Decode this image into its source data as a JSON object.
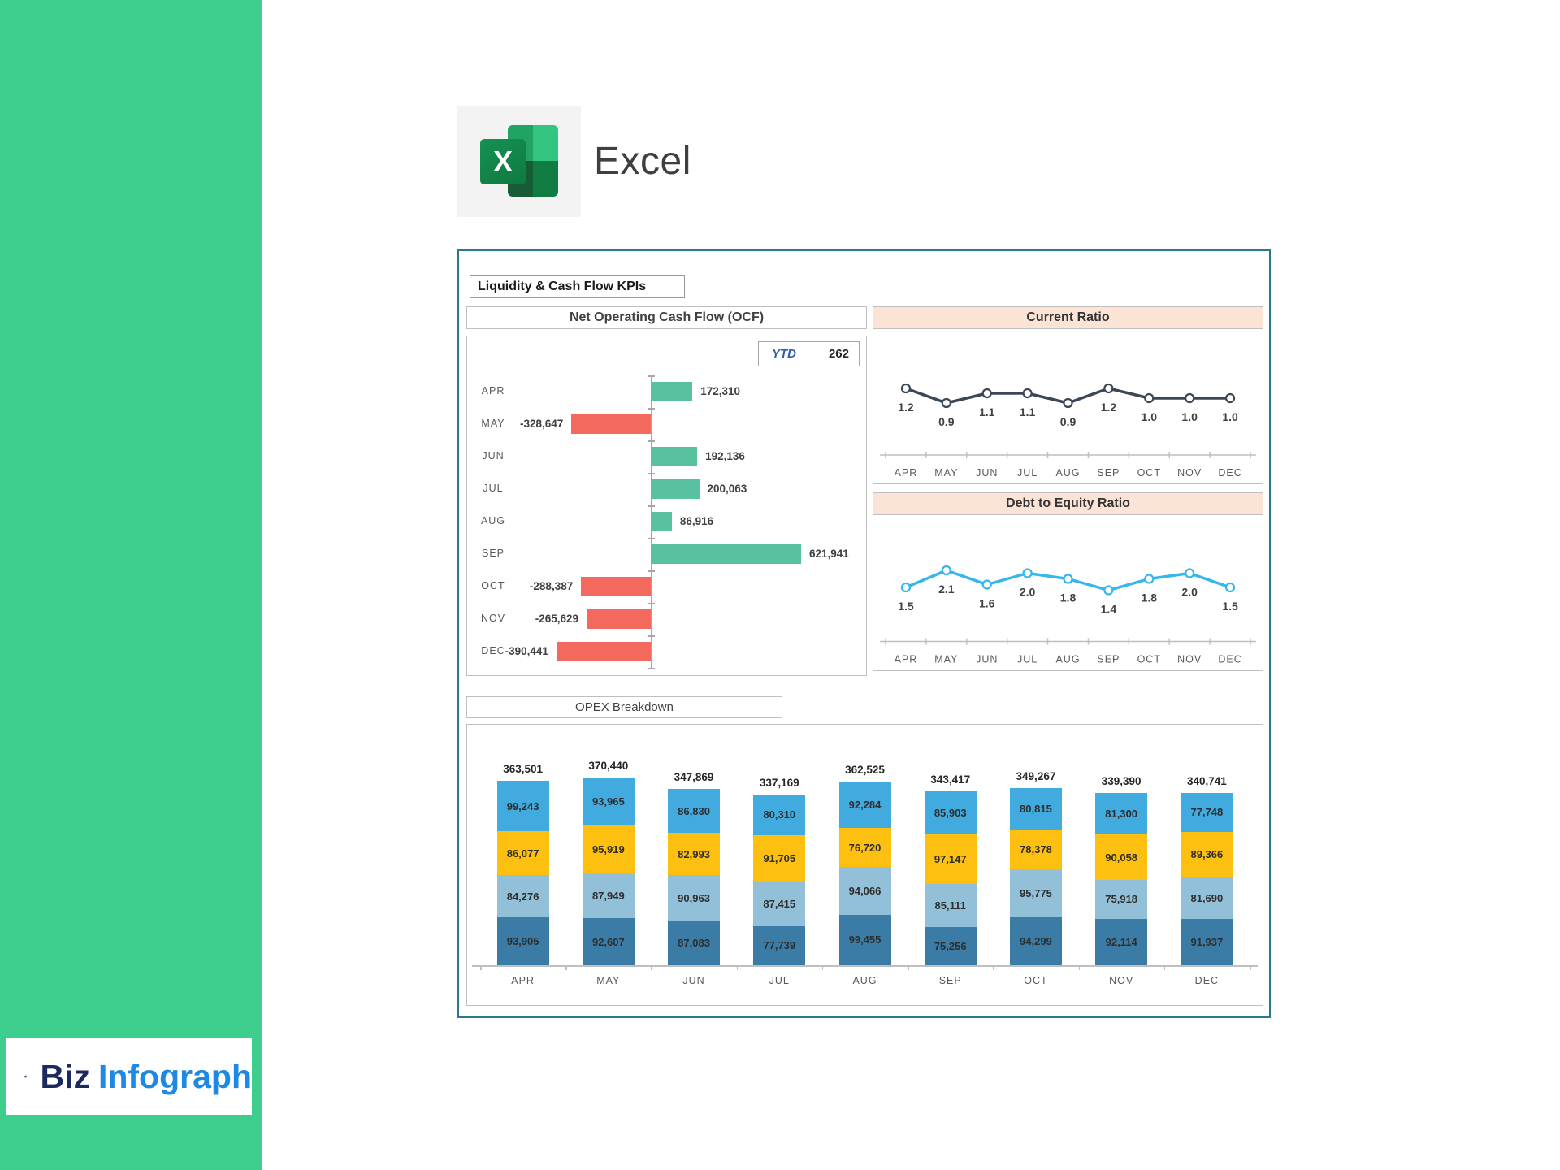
{
  "app": {
    "name": "Excel",
    "icon_letter": "X"
  },
  "brand": {
    "word1": "Biz",
    "word2": "Infograph"
  },
  "dashboard": {
    "title": "Liquidity & Cash Flow KPIs",
    "ocf_title": "Net Operating Cash Flow (OCF)",
    "ytd_label": "YTD",
    "ytd_value": "262",
    "current_ratio_title": "Current Ratio",
    "debt_equity_title": "Debt to Equity Ratio",
    "opex_title": "OPEX Breakdown"
  },
  "colors": {
    "sidebar_green": "#3DCE8D",
    "ocf_positive": "#57C1A0",
    "ocf_negative": "#F4695E",
    "current_ratio_line": "#3B4757",
    "debt_equity_line": "#35B6EC",
    "header_peach": "#FBE3D6",
    "opex_stack": [
      "#3A7CA6",
      "#93C0D9",
      "#FDC010",
      "#41ABE0"
    ]
  },
  "chart_data": [
    {
      "id": "ocf",
      "type": "bar",
      "orientation": "horizontal",
      "title": "Net Operating Cash Flow (OCF)",
      "categories": [
        "APR",
        "MAY",
        "JUN",
        "JUL",
        "AUG",
        "SEP",
        "OCT",
        "NOV",
        "DEC"
      ],
      "values": [
        172310,
        -328647,
        192136,
        200063,
        86916,
        621941,
        -288387,
        -265629,
        -390441
      ],
      "labels": [
        "172,310",
        "-328,647",
        "192,136",
        "200,063",
        "86,916",
        "621,941",
        "-288,387",
        "-265,629",
        "-390,441"
      ],
      "ylim": [
        -390441,
        621941
      ],
      "grid": false,
      "legend": "none"
    },
    {
      "id": "current_ratio",
      "type": "line",
      "title": "Current Ratio",
      "categories": [
        "APR",
        "MAY",
        "JUN",
        "JUL",
        "AUG",
        "SEP",
        "OCT",
        "NOV",
        "DEC"
      ],
      "values": [
        1.2,
        0.9,
        1.1,
        1.1,
        0.9,
        1.2,
        1.0,
        1.0,
        1.0
      ],
      "labels": [
        "1.2",
        "0.9",
        "1.1",
        "1.1",
        "0.9",
        "1.2",
        "1.0",
        "1.0",
        "1.0"
      ],
      "ylim": [
        0.3,
        1.7
      ],
      "grid": false,
      "legend": "none"
    },
    {
      "id": "debt_to_equity",
      "type": "line",
      "title": "Debt to Equity Ratio",
      "categories": [
        "APR",
        "MAY",
        "JUN",
        "JUL",
        "AUG",
        "SEP",
        "OCT",
        "NOV",
        "DEC"
      ],
      "values": [
        1.5,
        2.1,
        1.6,
        2.0,
        1.8,
        1.4,
        1.8,
        2.0,
        1.5
      ],
      "labels": [
        "1.5",
        "2.1",
        "1.6",
        "2.0",
        "1.8",
        "1.4",
        "1.8",
        "2.0",
        "1.5"
      ],
      "ylim": [
        0.4,
        2.8
      ],
      "grid": false,
      "legend": "none"
    },
    {
      "id": "opex",
      "type": "bar",
      "stacked": true,
      "title": "OPEX Breakdown",
      "categories": [
        "APR",
        "MAY",
        "JUN",
        "JUL",
        "AUG",
        "SEP",
        "OCT",
        "NOV",
        "DEC"
      ],
      "series": [
        {
          "name": "stack-bottom",
          "values": [
            93905,
            92607,
            87083,
            77739,
            99455,
            75256,
            94299,
            92114,
            91937
          ],
          "labels": [
            "93,905",
            "92,607",
            "87,083",
            "77,739",
            "99,455",
            "75,256",
            "94,299",
            "92,114",
            "91,937"
          ]
        },
        {
          "name": "stack-2",
          "values": [
            84276,
            87949,
            90963,
            87415,
            94066,
            85111,
            95775,
            75918,
            81690
          ],
          "labels": [
            "84,276",
            "87,949",
            "90,963",
            "87,415",
            "94,066",
            "85,111",
            "95,775",
            "75,918",
            "81,690"
          ]
        },
        {
          "name": "stack-3",
          "values": [
            86077,
            95919,
            82993,
            91705,
            76720,
            97147,
            78378,
            90058,
            89366
          ],
          "labels": [
            "86,077",
            "95,919",
            "82,993",
            "91,705",
            "76,720",
            "97,147",
            "78,378",
            "90,058",
            "89,366"
          ]
        },
        {
          "name": "stack-top",
          "values": [
            99243,
            93965,
            86830,
            80310,
            92284,
            85903,
            80815,
            81300,
            77748
          ],
          "labels": [
            "99,243",
            "93,965",
            "86,830",
            "80,310",
            "92,284",
            "85,903",
            "80,815",
            "81,300",
            "77,748"
          ]
        }
      ],
      "totals": [
        363501,
        370440,
        347869,
        337169,
        362525,
        343417,
        349267,
        339390,
        340741
      ],
      "totals_labels": [
        "363,501",
        "370,440",
        "347,869",
        "337,169",
        "362,525",
        "343,417",
        "349,267",
        "339,390",
        "340,741"
      ],
      "grid": false,
      "legend": "none"
    }
  ]
}
